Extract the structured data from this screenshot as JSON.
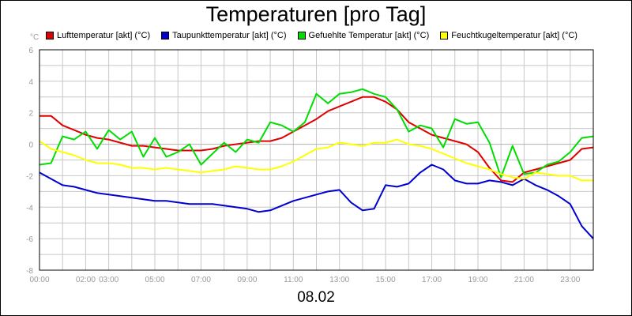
{
  "title": "Temperaturen [pro Tag]",
  "date": "08.02",
  "y_unit": "°C",
  "chart_data": {
    "type": "line",
    "title": "Temperaturen [pro Tag]",
    "xlabel": "08.02",
    "ylabel": "°C",
    "ylim": [
      -8,
      6
    ],
    "xlim": [
      0,
      24
    ],
    "y_ticks": [
      "6",
      "4",
      "2",
      "0",
      "-2",
      "-4",
      "-6",
      "-8"
    ],
    "x_ticks": [
      "00:00",
      "02:00",
      "03:00",
      "05:00",
      "07:00",
      "09:00",
      "11:00",
      "13:00",
      "15:00",
      "17:00",
      "19:00",
      "21:00",
      "23:00"
    ],
    "x_tick_hours": [
      0,
      2,
      3,
      5,
      7,
      9,
      11,
      13,
      15,
      17,
      19,
      21,
      23
    ],
    "grid": true,
    "legend_position": "top",
    "series": [
      {
        "name": "Lufttemperatur [akt] (°C)",
        "color": "#e00000",
        "x": [
          0,
          0.5,
          1,
          1.5,
          2,
          2.5,
          3,
          3.5,
          4,
          4.5,
          5,
          5.5,
          6,
          6.5,
          7,
          7.5,
          8,
          8.5,
          9,
          9.5,
          10,
          10.5,
          11,
          11.5,
          12,
          12.5,
          13,
          13.5,
          14,
          14.5,
          15,
          15.5,
          16,
          16.5,
          17,
          17.5,
          18,
          18.5,
          19,
          19.5,
          20,
          20.5,
          21,
          21.5,
          22,
          22.5,
          23,
          23.5,
          24
        ],
        "y": [
          1.8,
          1.8,
          1.2,
          0.9,
          0.6,
          0.4,
          0.3,
          0.1,
          -0.1,
          -0.1,
          -0.2,
          -0.3,
          -0.4,
          -0.4,
          -0.4,
          -0.3,
          -0.1,
          0,
          0.1,
          0.2,
          0.2,
          0.4,
          0.8,
          1.2,
          1.6,
          2.1,
          2.4,
          2.7,
          3.0,
          3.0,
          2.7,
          2.2,
          1.4,
          1.0,
          0.6,
          0.4,
          0.2,
          0.0,
          -0.5,
          -1.5,
          -2.3,
          -2.4,
          -1.8,
          -1.6,
          -1.4,
          -1.2,
          -1.0,
          -0.3,
          -0.2
        ]
      },
      {
        "name": "Taupunkttemperatur [akt] (°C)",
        "color": "#0000d0",
        "x": [
          0,
          0.5,
          1,
          1.5,
          2,
          2.5,
          3,
          3.5,
          4,
          4.5,
          5,
          5.5,
          6,
          6.5,
          7,
          7.5,
          8,
          8.5,
          9,
          9.5,
          10,
          10.5,
          11,
          11.5,
          12,
          12.5,
          13,
          13.5,
          14,
          14.5,
          15,
          15.5,
          16,
          16.5,
          17,
          17.5,
          18,
          18.5,
          19,
          19.5,
          20,
          20.5,
          21,
          21.5,
          22,
          22.5,
          23,
          23.5,
          24
        ],
        "y": [
          -1.8,
          -2.2,
          -2.6,
          -2.7,
          -2.9,
          -3.1,
          -3.2,
          -3.3,
          -3.4,
          -3.5,
          -3.6,
          -3.6,
          -3.7,
          -3.8,
          -3.8,
          -3.8,
          -3.9,
          -4.0,
          -4.1,
          -4.3,
          -4.2,
          -3.9,
          -3.6,
          -3.4,
          -3.2,
          -3.0,
          -2.9,
          -3.7,
          -4.2,
          -4.1,
          -2.6,
          -2.7,
          -2.5,
          -1.8,
          -1.3,
          -1.6,
          -2.3,
          -2.5,
          -2.5,
          -2.3,
          -2.4,
          -2.6,
          -2.2,
          -2.6,
          -2.9,
          -3.3,
          -3.8,
          -5.2,
          -6.0
        ]
      },
      {
        "name": "Gefuehlte Temperatur [akt] (°C)",
        "color": "#00dd00",
        "x": [
          0,
          0.5,
          1,
          1.5,
          2,
          2.5,
          3,
          3.5,
          4,
          4.5,
          5,
          5.5,
          6,
          6.5,
          7,
          7.5,
          8,
          8.5,
          9,
          9.5,
          10,
          10.5,
          11,
          11.5,
          12,
          12.5,
          13,
          13.5,
          14,
          14.5,
          15,
          15.5,
          16,
          16.5,
          17,
          17.5,
          18,
          18.5,
          19,
          19.5,
          20,
          20.5,
          21,
          21.5,
          22,
          22.5,
          23,
          23.5,
          24
        ],
        "y": [
          -1.3,
          -1.2,
          0.5,
          0.3,
          0.8,
          -0.3,
          0.9,
          0.3,
          0.8,
          -0.8,
          0.4,
          -0.8,
          -0.5,
          0.0,
          -1.3,
          -0.6,
          0.1,
          -0.5,
          0.3,
          0.1,
          1.4,
          1.2,
          0.8,
          1.4,
          3.2,
          2.6,
          3.2,
          3.3,
          3.5,
          3.2,
          3.0,
          2.2,
          0.8,
          1.2,
          1.0,
          -0.2,
          1.6,
          1.3,
          1.4,
          0.1,
          -2.1,
          -0.1,
          -1.9,
          -1.8,
          -1.3,
          -1.1,
          -0.5,
          0.4,
          0.5
        ]
      },
      {
        "name": "Feuchtkugeltemperatur [akt] (°C)",
        "color": "#ffff00",
        "x": [
          0,
          0.5,
          1,
          1.5,
          2,
          2.5,
          3,
          3.5,
          4,
          4.5,
          5,
          5.5,
          6,
          6.5,
          7,
          7.5,
          8,
          8.5,
          9,
          9.5,
          10,
          10.5,
          11,
          11.5,
          12,
          12.5,
          13,
          13.5,
          14,
          14.5,
          15,
          15.5,
          16,
          16.5,
          17,
          17.5,
          18,
          18.5,
          19,
          19.5,
          20,
          20.5,
          21,
          21.5,
          22,
          22.5,
          23,
          23.5,
          24
        ],
        "y": [
          0.2,
          -0.3,
          -0.5,
          -0.7,
          -1.0,
          -1.2,
          -1.2,
          -1.3,
          -1.5,
          -1.5,
          -1.6,
          -1.5,
          -1.6,
          -1.7,
          -1.8,
          -1.7,
          -1.6,
          -1.4,
          -1.5,
          -1.6,
          -1.6,
          -1.4,
          -1.1,
          -0.7,
          -0.3,
          -0.2,
          0.1,
          0.0,
          -0.1,
          0.1,
          0.1,
          0.3,
          0.0,
          -0.1,
          -0.3,
          -0.6,
          -0.9,
          -1.2,
          -1.4,
          -1.6,
          -1.9,
          -2.1,
          -2.2,
          -1.8,
          -1.9,
          -2.0,
          -2.0,
          -2.3,
          -2.3
        ]
      }
    ]
  }
}
